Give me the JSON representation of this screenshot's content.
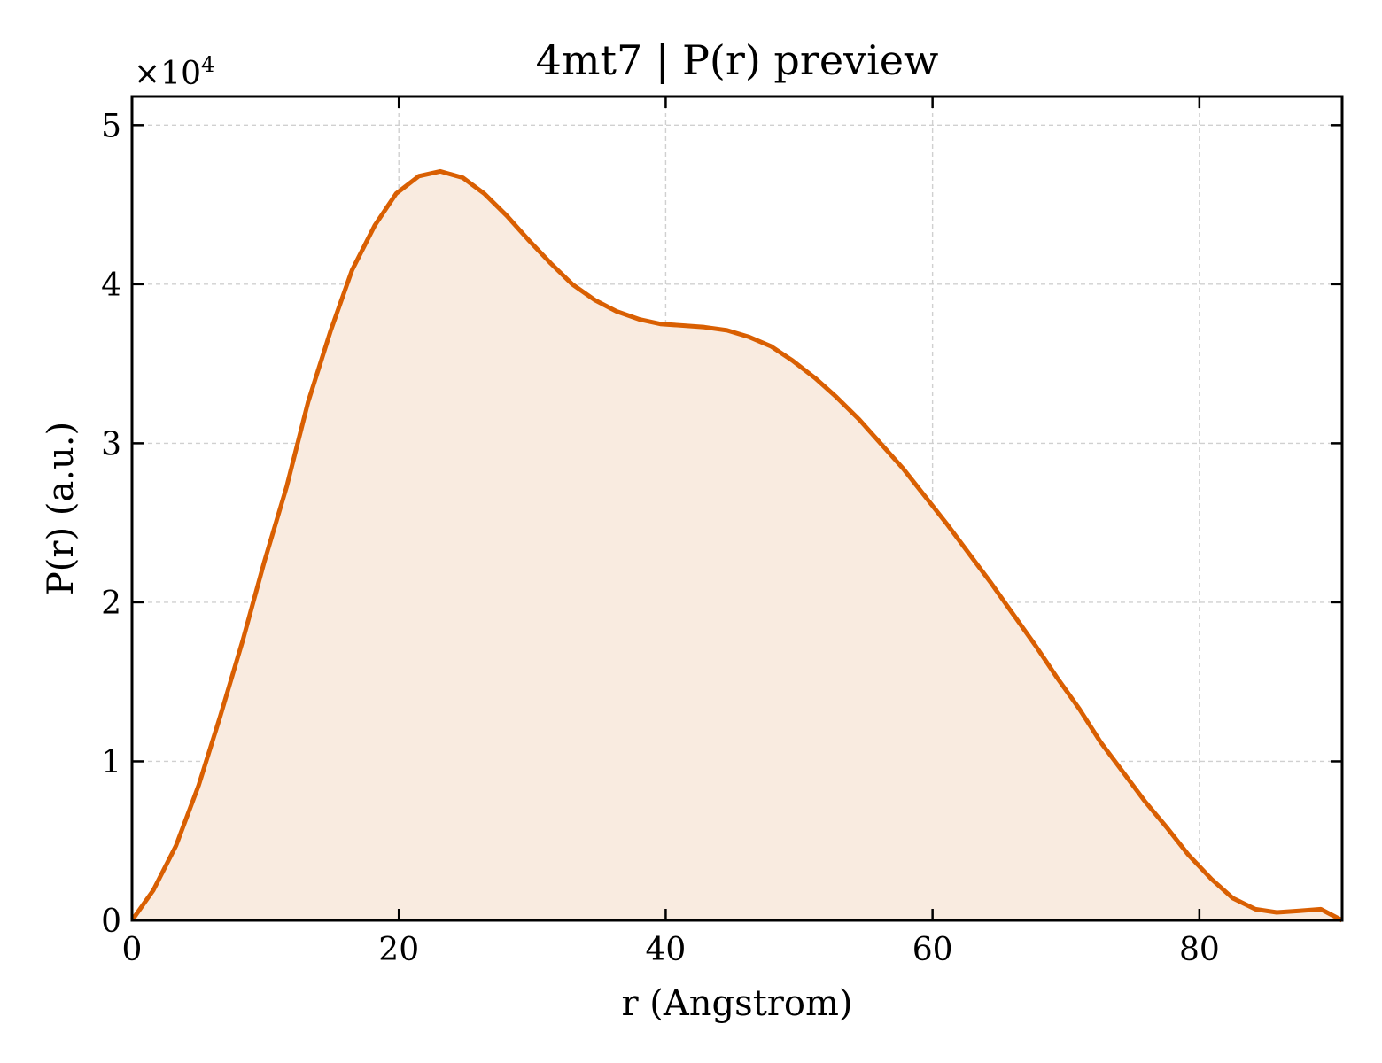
{
  "chart_data": {
    "type": "area",
    "title": "4mt7 | P(r) preview",
    "xlabel": "r (Angstrom)",
    "ylabel": "P(r) (a.u.)",
    "y_offset_text": "×10",
    "y_offset_exp": "4",
    "xlim": [
      0,
      90.7
    ],
    "ylim": [
      0,
      51800
    ],
    "x_ticks": [
      0,
      20,
      40,
      60,
      80
    ],
    "x_tick_labels": [
      "0",
      "20",
      "40",
      "60",
      "80"
    ],
    "y_ticks": [
      0,
      10000,
      20000,
      30000,
      40000,
      50000
    ],
    "y_tick_labels": [
      "0",
      "1",
      "2",
      "3",
      "4",
      "5"
    ],
    "grid": true,
    "colors": {
      "line": "#d95f02",
      "fill": "#f9ebe0"
    },
    "series": [
      {
        "x": [
          0,
          1.6,
          3.3,
          5.0,
          6.6,
          8.3,
          9.9,
          11.6,
          13.2,
          14.9,
          16.5,
          18.2,
          19.8,
          21.5,
          23.1,
          24.8,
          26.4,
          28.1,
          29.7,
          31.4,
          33.0,
          34.7,
          36.3,
          38.0,
          39.6,
          41.3,
          42.9,
          44.6,
          46.2,
          47.9,
          49.5,
          51.2,
          52.8,
          54.5,
          56.1,
          57.8,
          59.4,
          61.1,
          62.7,
          64.4,
          66.0,
          67.7,
          69.3,
          71.0,
          72.6,
          74.3,
          75.9,
          77.6,
          79.2,
          80.9,
          82.5,
          84.2,
          85.8,
          87.5,
          89.1,
          90.7
        ],
        "y": [
          0,
          1900,
          4700,
          8500,
          12800,
          17600,
          22500,
          27300,
          32600,
          37100,
          40900,
          43700,
          45700,
          46800,
          47100,
          46700,
          45700,
          44300,
          42800,
          41300,
          40000,
          39000,
          38300,
          37800,
          37500,
          37400,
          37300,
          37100,
          36700,
          36100,
          35200,
          34100,
          32900,
          31500,
          30000,
          28400,
          26700,
          24900,
          23100,
          21200,
          19300,
          17300,
          15300,
          13300,
          11200,
          9300,
          7500,
          5800,
          4100,
          2600,
          1400,
          700,
          500,
          600,
          700,
          0
        ]
      }
    ]
  }
}
